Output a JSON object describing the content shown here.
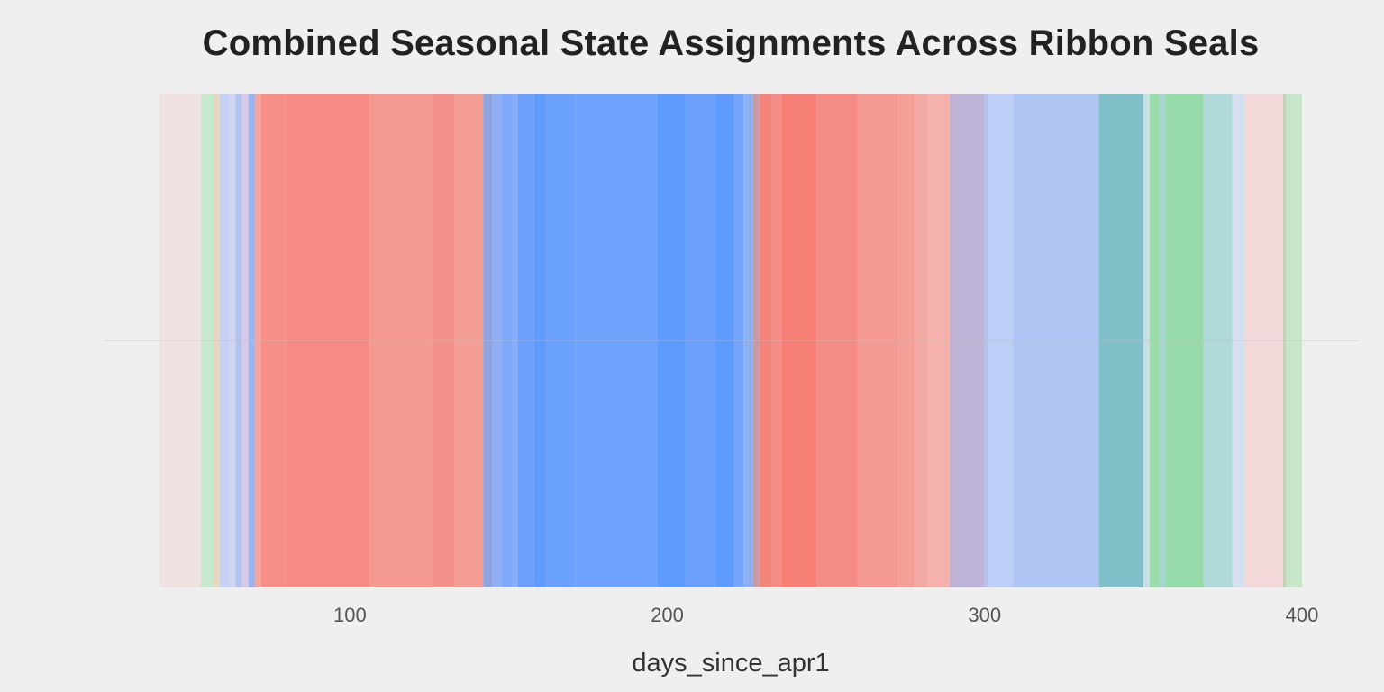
{
  "chart_data": {
    "type": "area",
    "title": "Combined Seasonal State Assignments Across Ribbon Seals",
    "xlabel": "days_since_apr1",
    "ylabel": "",
    "xlim": [
      40,
      400
    ],
    "xticks": [
      100,
      200,
      300,
      400
    ],
    "grid": true,
    "legend": "none",
    "bands": [
      {
        "x0": 40,
        "x1": 53,
        "color": "#f1e2e2"
      },
      {
        "x0": 53,
        "x1": 57,
        "color": "#c6e8cd"
      },
      {
        "x0": 57,
        "x1": 59,
        "color": "#e9d5c0"
      },
      {
        "x0": 59,
        "x1": 62,
        "color": "#c6d2f3"
      },
      {
        "x0": 62,
        "x1": 64,
        "color": "#d2d5f0"
      },
      {
        "x0": 64,
        "x1": 66,
        "color": "#b3c3ef"
      },
      {
        "x0": 66,
        "x1": 68,
        "color": "#d8c9e6"
      },
      {
        "x0": 68,
        "x1": 70,
        "color": "#9ab4f0"
      },
      {
        "x0": 70,
        "x1": 72,
        "color": "#f4a49c"
      },
      {
        "x0": 72,
        "x1": 80,
        "color": "#f58f88"
      },
      {
        "x0": 80,
        "x1": 106,
        "color": "#f58b84"
      },
      {
        "x0": 106,
        "x1": 126,
        "color": "#f59a91"
      },
      {
        "x0": 126,
        "x1": 133,
        "color": "#f4918a"
      },
      {
        "x0": 133,
        "x1": 142,
        "color": "#f59e95"
      },
      {
        "x0": 142,
        "x1": 145,
        "color": "#8ea4e0"
      },
      {
        "x0": 145,
        "x1": 148,
        "color": "#8fb0f6"
      },
      {
        "x0": 148,
        "x1": 151,
        "color": "#7ea8fa"
      },
      {
        "x0": 151,
        "x1": 153,
        "color": "#86aefa"
      },
      {
        "x0": 153,
        "x1": 158,
        "color": "#6b9ffb"
      },
      {
        "x0": 158,
        "x1": 162,
        "color": "#5f9afd"
      },
      {
        "x0": 162,
        "x1": 171,
        "color": "#6aa1fd"
      },
      {
        "x0": 171,
        "x1": 197,
        "color": "#6ea4fd"
      },
      {
        "x0": 197,
        "x1": 206,
        "color": "#5e9bfd"
      },
      {
        "x0": 206,
        "x1": 215,
        "color": "#6a9ffc"
      },
      {
        "x0": 215,
        "x1": 221,
        "color": "#5f9bfc"
      },
      {
        "x0": 221,
        "x1": 224,
        "color": "#74a5fb"
      },
      {
        "x0": 224,
        "x1": 227,
        "color": "#8db0f3"
      },
      {
        "x0": 227,
        "x1": 229,
        "color": "#c89aa6"
      },
      {
        "x0": 229,
        "x1": 233,
        "color": "#f4857d"
      },
      {
        "x0": 233,
        "x1": 236,
        "color": "#f48b84"
      },
      {
        "x0": 236,
        "x1": 247,
        "color": "#f57f74"
      },
      {
        "x0": 247,
        "x1": 260,
        "color": "#f58d86"
      },
      {
        "x0": 260,
        "x1": 273,
        "color": "#f59a92"
      },
      {
        "x0": 273,
        "x1": 278,
        "color": "#f4a099"
      },
      {
        "x0": 278,
        "x1": 282,
        "color": "#f4aaa4"
      },
      {
        "x0": 282,
        "x1": 289,
        "color": "#f5b2ad"
      },
      {
        "x0": 289,
        "x1": 290,
        "color": "#c3b0d0"
      },
      {
        "x0": 290,
        "x1": 300,
        "color": "#bdb4d8"
      },
      {
        "x0": 300,
        "x1": 301,
        "color": "#aec2f3"
      },
      {
        "x0": 301,
        "x1": 309,
        "color": "#bdcff6"
      },
      {
        "x0": 309,
        "x1": 336,
        "color": "#afc5f3"
      },
      {
        "x0": 336,
        "x1": 350,
        "color": "#80c0c8"
      },
      {
        "x0": 350,
        "x1": 352,
        "color": "#c8dfe4"
      },
      {
        "x0": 352,
        "x1": 355,
        "color": "#9bdcad"
      },
      {
        "x0": 355,
        "x1": 357,
        "color": "#a7d6cf"
      },
      {
        "x0": 357,
        "x1": 369,
        "color": "#98dbab"
      },
      {
        "x0": 369,
        "x1": 378,
        "color": "#b0d9d9"
      },
      {
        "x0": 378,
        "x1": 382,
        "color": "#d4e0ef"
      },
      {
        "x0": 382,
        "x1": 394,
        "color": "#f2d8d8"
      },
      {
        "x0": 394,
        "x1": 395,
        "color": "#c1d3bc"
      },
      {
        "x0": 395,
        "x1": 400,
        "color": "#c7e6ca"
      }
    ]
  }
}
